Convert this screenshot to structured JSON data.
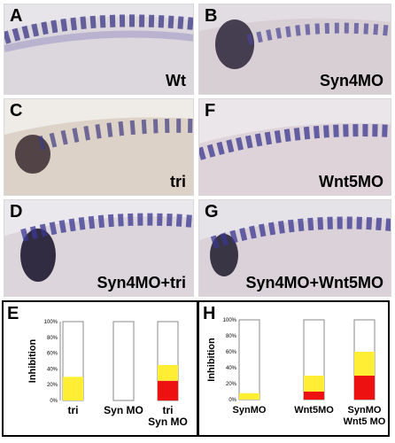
{
  "panels": [
    {
      "letter": "A",
      "caption": "Wt"
    },
    {
      "letter": "B",
      "caption": "Syn4MO"
    },
    {
      "letter": "C",
      "caption": "tri"
    },
    {
      "letter": "F",
      "caption": "Wnt5MO"
    },
    {
      "letter": "D",
      "caption": "Syn4MO+tri"
    },
    {
      "letter": "G",
      "caption": "Syn4MO+Wnt5MO"
    }
  ],
  "colors": {
    "bar_empty": "#ffffff",
    "bar_yellow": "#ffee33",
    "bar_red": "#ee1111"
  },
  "chart_data": [
    {
      "type": "bar",
      "panel": "E",
      "ylabel": "Inhibition",
      "yticks": [
        "0%",
        "20%",
        "40%",
        "60%",
        "80%",
        "100%"
      ],
      "ylim": [
        0,
        100
      ],
      "categories": [
        [
          "tri"
        ],
        [
          "Syn MO"
        ],
        [
          "tri",
          "Syn MO"
        ]
      ],
      "series": [
        {
          "color": "#ee1111",
          "values": [
            0,
            0,
            25
          ]
        },
        {
          "color": "#ffee33",
          "values": [
            30,
            0,
            20
          ]
        }
      ],
      "total": 100
    },
    {
      "type": "bar",
      "panel": "H",
      "ylabel": "Inhibition",
      "yticks": [
        "0%",
        "20%",
        "40%",
        "60%",
        "80%",
        "100%"
      ],
      "ylim": [
        0,
        100
      ],
      "categories": [
        [
          "SynMO"
        ],
        [
          "Wnt5MO"
        ],
        [
          "SynMO",
          "Wnt5 MO"
        ]
      ],
      "series": [
        {
          "color": "#ee1111",
          "values": [
            0,
            10,
            30
          ]
        },
        {
          "color": "#ffee33",
          "values": [
            8,
            20,
            30
          ]
        }
      ],
      "total": 100
    }
  ]
}
